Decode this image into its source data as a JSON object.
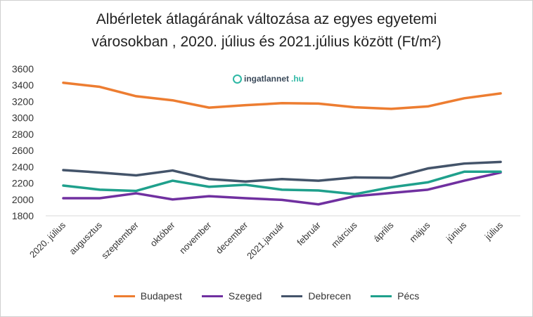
{
  "chart_data": {
    "type": "line",
    "title": "Albérletek átlagárának változása az egyes egyetemi városokban , 2020. július és 2021.július között (Ft/m²)",
    "title_lines": [
      "Albérletek átlagárának változása az egyes egyetemi",
      "városokban , 2020. július és 2021.július között (Ft/m²)"
    ],
    "categories": [
      "2020. július",
      "augusztus",
      "szeptember",
      "október",
      "november",
      "december",
      "2021.január",
      "február",
      "március",
      "április",
      "május",
      "június",
      "július"
    ],
    "ylim": [
      1800,
      3600
    ],
    "yticks": [
      1800,
      2000,
      2200,
      2400,
      2600,
      2800,
      3000,
      3200,
      3400,
      3600
    ],
    "grid": false,
    "legend": "bottom",
    "series": [
      {
        "name": "Budapest",
        "color": "#ed7d31",
        "values": [
          3430,
          3380,
          3265,
          3215,
          3125,
          3155,
          3180,
          3175,
          3130,
          3110,
          3140,
          3240,
          3300
        ]
      },
      {
        "name": "Szeged",
        "color": "#7030a0",
        "values": [
          2015,
          2015,
          2075,
          2000,
          2040,
          2015,
          1995,
          1940,
          2040,
          2080,
          2120,
          2230,
          2330
        ]
      },
      {
        "name": "Debrecen",
        "color": "#44546a",
        "values": [
          2360,
          2330,
          2295,
          2355,
          2250,
          2220,
          2250,
          2230,
          2270,
          2265,
          2380,
          2440,
          2460
        ]
      },
      {
        "name": "Pécs",
        "color": "#1fa08c",
        "values": [
          2170,
          2120,
          2105,
          2230,
          2155,
          2180,
          2120,
          2110,
          2065,
          2150,
          2210,
          2340,
          2340
        ]
      }
    ]
  },
  "watermark": {
    "text": "ingatlannet",
    "suffix": ".hu"
  }
}
